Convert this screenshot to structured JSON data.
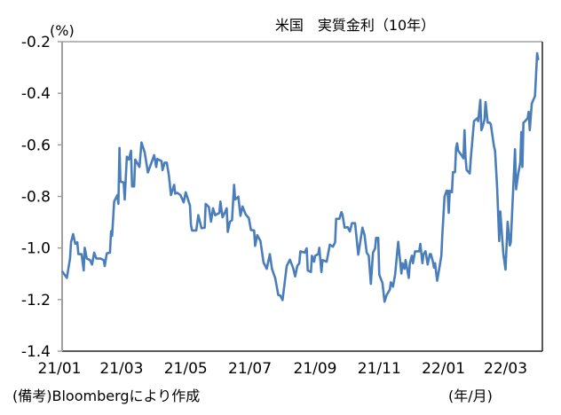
{
  "chart_data": {
    "type": "line",
    "title": "米国　実質金利（10年）",
    "ylabel": "(%)",
    "xlabel": "(年/月)",
    "note": "(備考)Bloombergにより作成",
    "ylim": [
      -1.4,
      -0.2
    ],
    "yticks": [
      -0.2,
      -0.4,
      -0.6,
      -0.8,
      -1.0,
      -1.2,
      -1.4
    ],
    "ytick_labels": [
      "-0.2",
      "-0.4",
      "-0.6",
      "-0.8",
      "-1.0",
      "-1.2",
      "-1.4"
    ],
    "xlim": [
      "2021-01-01",
      "2022-04-05"
    ],
    "xticks": [
      "2021-01-01",
      "2021-03-01",
      "2021-05-01",
      "2021-07-01",
      "2021-09-01",
      "2021-11-01",
      "2022-01-01",
      "2022-03-01"
    ],
    "xtick_labels": [
      "21/01",
      "21/03",
      "21/05",
      "21/07",
      "21/09",
      "21/11",
      "22/01",
      "22/03"
    ],
    "grid": false,
    "line_color": "#4a7ebb",
    "series": [
      {
        "points": [
          [
            "2021-01-04",
            -1.093
          ],
          [
            "2021-01-08",
            -1.116
          ],
          [
            "2021-01-11",
            -1.041
          ],
          [
            "2021-01-12",
            -0.978
          ],
          [
            "2021-01-14",
            -0.946
          ],
          [
            "2021-01-16",
            -0.984
          ],
          [
            "2021-01-18",
            -0.978
          ],
          [
            "2021-01-19",
            -1.024
          ],
          [
            "2021-01-22",
            -1.024
          ],
          [
            "2021-01-24",
            -1.087
          ],
          [
            "2021-01-25",
            -0.999
          ],
          [
            "2021-01-27",
            -1.041
          ],
          [
            "2021-01-30",
            -1.047
          ],
          [
            "2021-02-01",
            -1.064
          ],
          [
            "2021-02-03",
            -1.018
          ],
          [
            "2021-02-05",
            -1.041
          ],
          [
            "2021-02-09",
            -1.041
          ],
          [
            "2021-02-12",
            -1.047
          ],
          [
            "2021-02-13",
            -1.07
          ],
          [
            "2021-02-15",
            -1.021
          ],
          [
            "2021-02-18",
            -1.018
          ],
          [
            "2021-02-19",
            -0.935
          ],
          [
            "2021-02-20",
            -0.953
          ],
          [
            "2021-02-22",
            -0.82
          ],
          [
            "2021-02-25",
            -0.795
          ],
          [
            "2021-02-26",
            -0.829
          ],
          [
            "2021-02-27",
            -0.612
          ],
          [
            "2021-02-28",
            -0.743
          ],
          [
            "2021-03-03",
            -0.746
          ],
          [
            "2021-03-04",
            -0.812
          ],
          [
            "2021-03-06",
            -0.646
          ],
          [
            "2021-03-08",
            -0.657
          ],
          [
            "2021-03-10",
            -0.623
          ],
          [
            "2021-03-11",
            -0.761
          ],
          [
            "2021-03-13",
            -0.761
          ],
          [
            "2021-03-14",
            -0.657
          ],
          [
            "2021-03-18",
            -0.686
          ],
          [
            "2021-03-20",
            -0.591
          ],
          [
            "2021-03-23",
            -0.629
          ],
          [
            "2021-03-26",
            -0.707
          ],
          [
            "2021-04-01",
            -0.64
          ],
          [
            "2021-04-03",
            -0.686
          ],
          [
            "2021-04-04",
            -0.655
          ],
          [
            "2021-04-08",
            -0.663
          ],
          [
            "2021-04-09",
            -0.698
          ],
          [
            "2021-04-11",
            -0.669
          ],
          [
            "2021-04-13",
            -0.669
          ],
          [
            "2021-04-15",
            -0.72
          ],
          [
            "2021-04-17",
            -0.795
          ],
          [
            "2021-04-20",
            -0.755
          ],
          [
            "2021-04-21",
            -0.789
          ],
          [
            "2021-04-23",
            -0.786
          ],
          [
            "2021-04-26",
            -0.795
          ],
          [
            "2021-04-29",
            -0.823
          ],
          [
            "2021-05-01",
            -0.784
          ],
          [
            "2021-05-05",
            -0.835
          ],
          [
            "2021-05-06",
            -0.909
          ],
          [
            "2021-05-07",
            -0.932
          ],
          [
            "2021-05-11",
            -0.932
          ],
          [
            "2021-05-13",
            -0.873
          ],
          [
            "2021-05-16",
            -0.923
          ],
          [
            "2021-05-19",
            -0.921
          ],
          [
            "2021-05-20",
            -0.829
          ],
          [
            "2021-05-23",
            -0.841
          ],
          [
            "2021-05-25",
            -0.898
          ],
          [
            "2021-05-27",
            -0.846
          ],
          [
            "2021-05-29",
            -0.873
          ],
          [
            "2021-06-02",
            -0.864
          ],
          [
            "2021-06-03",
            -0.82
          ],
          [
            "2021-06-05",
            -0.881
          ],
          [
            "2021-06-07",
            -0.864
          ],
          [
            "2021-06-09",
            -0.846
          ],
          [
            "2021-06-10",
            -0.938
          ],
          [
            "2021-06-12",
            -0.898
          ],
          [
            "2021-06-14",
            -0.892
          ],
          [
            "2021-06-16",
            -0.755
          ],
          [
            "2021-06-17",
            -0.812
          ],
          [
            "2021-06-20",
            -0.801
          ],
          [
            "2021-06-22",
            -0.875
          ],
          [
            "2021-06-24",
            -0.839
          ],
          [
            "2021-06-27",
            -0.87
          ],
          [
            "2021-06-30",
            -0.884
          ],
          [
            "2021-07-02",
            -0.93
          ],
          [
            "2021-07-05",
            -0.932
          ],
          [
            "2021-07-06",
            -0.992
          ],
          [
            "2021-07-08",
            -0.95
          ],
          [
            "2021-07-11",
            -0.973
          ],
          [
            "2021-07-14",
            -1.056
          ],
          [
            "2021-07-17",
            -1.081
          ],
          [
            "2021-07-20",
            -1.024
          ],
          [
            "2021-07-22",
            -1.081
          ],
          [
            "2021-07-25",
            -1.116
          ],
          [
            "2021-07-28",
            -1.182
          ],
          [
            "2021-07-30",
            -1.185
          ],
          [
            "2021-08-01",
            -1.202
          ],
          [
            "2021-08-05",
            -1.07
          ],
          [
            "2021-08-08",
            -1.045
          ],
          [
            "2021-08-11",
            -1.076
          ],
          [
            "2021-08-13",
            -1.11
          ],
          [
            "2021-08-15",
            -1.07
          ],
          [
            "2021-08-17",
            -1.059
          ],
          [
            "2021-08-18",
            -1.013
          ],
          [
            "2021-08-22",
            -1.018
          ],
          [
            "2021-08-24",
            -1.001
          ],
          [
            "2021-08-25",
            -1.087
          ],
          [
            "2021-08-28",
            -1.093
          ],
          [
            "2021-08-29",
            -1.03
          ],
          [
            "2021-08-31",
            -1.053
          ],
          [
            "2021-09-01",
            -1.03
          ],
          [
            "2021-09-04",
            -1.024
          ],
          [
            "2021-09-05",
            -0.999
          ],
          [
            "2021-09-07",
            -1.093
          ],
          [
            "2021-09-08",
            -1.047
          ],
          [
            "2021-09-12",
            -1.053
          ],
          [
            "2021-09-15",
            -0.987
          ],
          [
            "2021-09-18",
            -0.995
          ],
          [
            "2021-09-20",
            -0.978
          ],
          [
            "2021-09-21",
            -0.887
          ],
          [
            "2021-09-24",
            -0.887
          ],
          [
            "2021-09-26",
            -0.861
          ],
          [
            "2021-09-27",
            -0.87
          ],
          [
            "2021-09-29",
            -0.921
          ],
          [
            "2021-10-02",
            -0.919
          ],
          [
            "2021-10-04",
            -0.936
          ],
          [
            "2021-10-06",
            -0.904
          ],
          [
            "2021-10-09",
            -0.904
          ],
          [
            "2021-10-10",
            -0.944
          ],
          [
            "2021-10-12",
            -1.026
          ],
          [
            "2021-10-14",
            -0.973
          ],
          [
            "2021-10-16",
            -0.921
          ],
          [
            "2021-10-18",
            -0.95
          ],
          [
            "2021-10-20",
            -1.018
          ],
          [
            "2021-10-22",
            -1.03
          ],
          [
            "2021-10-24",
            -1.139
          ],
          [
            "2021-10-26",
            -1.018
          ],
          [
            "2021-10-28",
            -1.001
          ],
          [
            "2021-10-29",
            -0.961
          ],
          [
            "2021-10-31",
            -0.961
          ],
          [
            "2021-11-01",
            -1.104
          ],
          [
            "2021-11-04",
            -1.136
          ],
          [
            "2021-11-06",
            -1.208
          ],
          [
            "2021-11-08",
            -1.182
          ],
          [
            "2021-11-11",
            -1.162
          ],
          [
            "2021-11-12",
            -1.133
          ],
          [
            "2021-11-14",
            -1.15
          ],
          [
            "2021-11-16",
            -1.104
          ],
          [
            "2021-11-19",
            -0.976
          ],
          [
            "2021-11-22",
            -1.099
          ],
          [
            "2021-11-23",
            -1.059
          ],
          [
            "2021-11-25",
            -1.081
          ],
          [
            "2021-11-26",
            -1.047
          ],
          [
            "2021-11-28",
            -1.093
          ],
          [
            "2021-11-29",
            -1.116
          ],
          [
            "2021-11-30",
            -1.059
          ],
          [
            "2021-12-02",
            -1.03
          ],
          [
            "2021-12-03",
            -1.059
          ],
          [
            "2021-12-05",
            -1.013
          ],
          [
            "2021-12-09",
            -1.013
          ],
          [
            "2021-12-10",
            -0.984
          ],
          [
            "2021-12-12",
            -1.059
          ],
          [
            "2021-12-13",
            -1.024
          ],
          [
            "2021-12-15",
            -1.013
          ],
          [
            "2021-12-17",
            -1.064
          ],
          [
            "2021-12-19",
            -1.024
          ],
          [
            "2021-12-20",
            -1.024
          ],
          [
            "2021-12-22",
            -1.053
          ],
          [
            "2021-12-23",
            -1.076
          ],
          [
            "2021-12-24",
            -1.059
          ],
          [
            "2021-12-26",
            -1.127
          ],
          [
            "2021-12-28",
            -1.079
          ],
          [
            "2021-12-30",
            -1.03
          ],
          [
            "2021-12-31",
            -0.944
          ],
          [
            "2022-01-02",
            -0.801
          ],
          [
            "2022-01-04",
            -0.778
          ],
          [
            "2022-01-05",
            -0.778
          ],
          [
            "2022-01-06",
            -0.864
          ],
          [
            "2022-01-07",
            -0.778
          ],
          [
            "2022-01-09",
            -0.784
          ],
          [
            "2022-01-10",
            -0.706
          ],
          [
            "2022-01-12",
            -0.706
          ],
          [
            "2022-01-13",
            -0.612
          ],
          [
            "2022-01-14",
            -0.594
          ],
          [
            "2022-01-15",
            -0.623
          ],
          [
            "2022-01-17",
            -0.634
          ],
          [
            "2022-01-19",
            -0.646
          ],
          [
            "2022-01-20",
            -0.652
          ],
          [
            "2022-01-21",
            -0.543
          ],
          [
            "2022-01-22",
            -0.652
          ],
          [
            "2022-01-23",
            -0.698
          ],
          [
            "2022-01-26",
            -0.711
          ],
          [
            "2022-01-27",
            -0.652
          ],
          [
            "2022-01-30",
            -0.508
          ],
          [
            "2022-02-02",
            -0.497
          ],
          [
            "2022-02-03",
            -0.508
          ],
          [
            "2022-02-05",
            -0.426
          ],
          [
            "2022-02-06",
            -0.543
          ],
          [
            "2022-02-07",
            -0.534
          ],
          [
            "2022-02-09",
            -0.503
          ],
          [
            "2022-02-10",
            -0.434
          ],
          [
            "2022-02-12",
            -0.514
          ],
          [
            "2022-02-14",
            -0.514
          ],
          [
            "2022-02-15",
            -0.52
          ],
          [
            "2022-02-18",
            -0.606
          ],
          [
            "2022-02-19",
            -0.623
          ],
          [
            "2022-02-21",
            -0.761
          ],
          [
            "2022-02-23",
            -0.973
          ],
          [
            "2022-02-24",
            -0.858
          ],
          [
            "2022-02-26",
            -0.973
          ],
          [
            "2022-02-27",
            -1.024
          ],
          [
            "2022-03-01",
            -1.084
          ],
          [
            "2022-03-03",
            -0.898
          ],
          [
            "2022-03-05",
            -0.99
          ],
          [
            "2022-03-06",
            -0.978
          ],
          [
            "2022-03-10",
            -0.617
          ],
          [
            "2022-03-11",
            -0.772
          ],
          [
            "2022-03-13",
            -0.715
          ],
          [
            "2022-03-15",
            -0.669
          ],
          [
            "2022-03-16",
            -0.55
          ],
          [
            "2022-03-17",
            -0.686
          ],
          [
            "2022-03-18",
            -0.514
          ],
          [
            "2022-03-19",
            -0.511
          ],
          [
            "2022-03-22",
            -0.497
          ],
          [
            "2022-03-23",
            -0.472
          ],
          [
            "2022-03-24",
            -0.543
          ],
          [
            "2022-03-26",
            -0.44
          ],
          [
            "2022-03-29",
            -0.411
          ],
          [
            "2022-03-31",
            -0.245
          ],
          [
            "2022-04-01",
            -0.268
          ]
        ]
      }
    ]
  }
}
